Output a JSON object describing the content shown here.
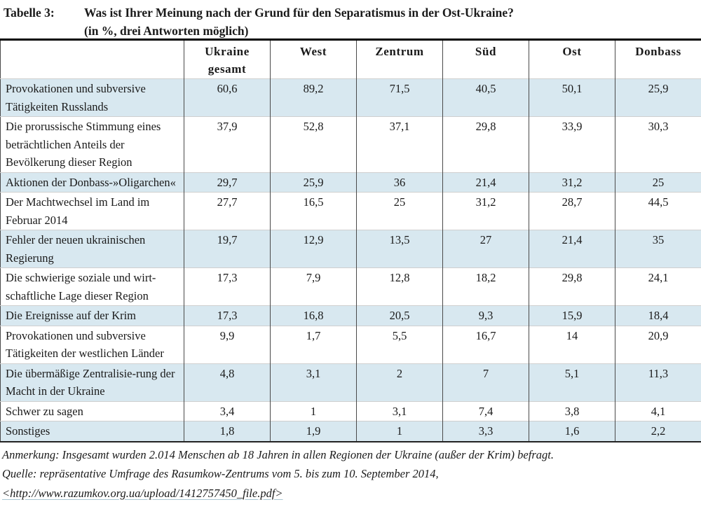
{
  "header": {
    "table_label": "Tabelle 3:",
    "title_line1": "Was ist Ihrer Meinung nach der Grund für den Separatismus in der Ost-Ukraine?",
    "title_line2": "(in %, drei Antworten möglich)"
  },
  "chart_data": {
    "type": "table",
    "title": "Was ist Ihrer Meinung nach der Grund für den Separatismus in der Ost-Ukraine? (in %, drei Antworten möglich)",
    "columns": [
      "Ukraine gesamt",
      "West",
      "Zentrum",
      "Süd",
      "Ost",
      "Donbass"
    ],
    "rows": [
      {
        "label": "Provokationen und subversive Tätigkeiten Russlands",
        "values": [
          "60,6",
          "89,2",
          "71,5",
          "40,5",
          "50,1",
          "25,9"
        ]
      },
      {
        "label": "Die prorussische Stimmung eines beträchtlichen Anteils der Bevölkerung dieser Region",
        "values": [
          "37,9",
          "52,8",
          "37,1",
          "29,8",
          "33,9",
          "30,3"
        ]
      },
      {
        "label": "Aktionen der Donbass-»Oligarchen«",
        "values": [
          "29,7",
          "25,9",
          "36",
          "21,4",
          "31,2",
          "25"
        ]
      },
      {
        "label": "Der Machtwechsel im Land im Februar 2014",
        "values": [
          "27,7",
          "16,5",
          "25",
          "31,2",
          "28,7",
          "44,5"
        ]
      },
      {
        "label": "Fehler der neuen ukrainischen Regierung",
        "values": [
          "19,7",
          "12,9",
          "13,5",
          "27",
          "21,4",
          "35"
        ]
      },
      {
        "label": "Die schwierige soziale und wirt-schaftliche Lage dieser Region",
        "values": [
          "17,3",
          "7,9",
          "12,8",
          "18,2",
          "29,8",
          "24,1"
        ]
      },
      {
        "label": "Die Ereignisse auf der Krim",
        "values": [
          "17,3",
          "16,8",
          "20,5",
          "9,3",
          "15,9",
          "18,4"
        ]
      },
      {
        "label": "Provokationen und subversive Tätigkeiten der westlichen Länder",
        "values": [
          "9,9",
          "1,7",
          "5,5",
          "16,7",
          "14",
          "20,9"
        ]
      },
      {
        "label": "Die übermäßige Zentralisie-rung der Macht in der Ukraine",
        "values": [
          "4,8",
          "3,1",
          "2",
          "7",
          "5,1",
          "11,3"
        ]
      },
      {
        "label": "Schwer zu sagen",
        "values": [
          "3,4",
          "1",
          "3,1",
          "7,4",
          "3,8",
          "4,1"
        ]
      },
      {
        "label": "Sonstiges",
        "values": [
          "1,8",
          "1,9",
          "1",
          "3,3",
          "1,6",
          "2,2"
        ]
      }
    ]
  },
  "notes": {
    "anmerkung": "Anmerkung: Insgesamt wurden 2.014 Menschen ab 18 Jahren in allen Regionen der Ukraine (außer der Krim) befragt.",
    "quelle_prefix": "Quelle: repräsentative Umfrage des Rasumkow-Zentrums vom 5. bis zum 10. September 2014, ",
    "quelle_url": "<http://www.razumkov.org.ua/upload/1412757450_file.pdf>"
  },
  "colors": {
    "row_stripe": "#d8e8f0",
    "column_rule": "#4a4a4a",
    "row_rule": "#cfcfcf",
    "top_border": "#000000"
  }
}
